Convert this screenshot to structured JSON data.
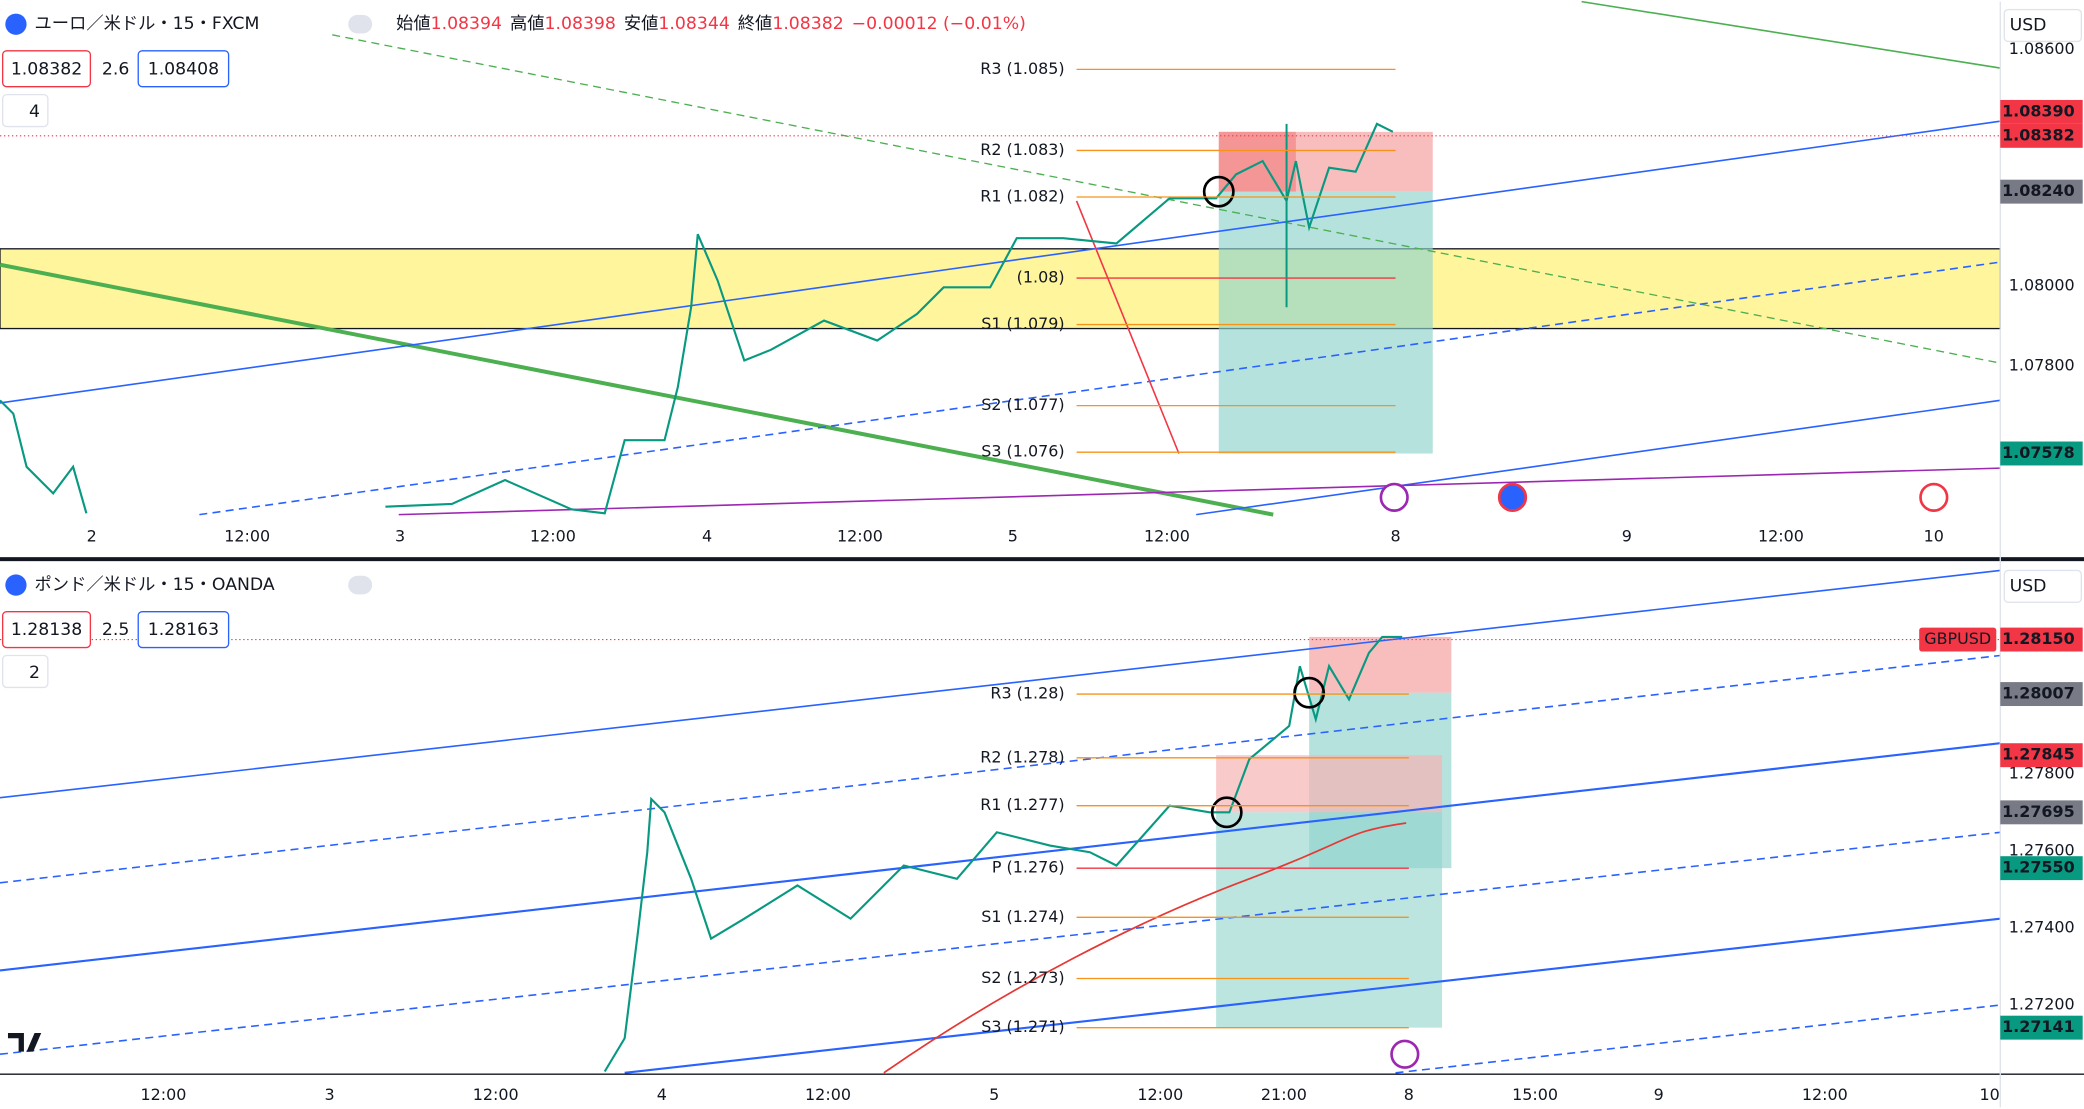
{
  "panels": [
    {
      "symbol": "ユーロ／米ドル・15・FXCM",
      "ohlc": [
        {
          "label": "始値",
          "value": "1.08394"
        },
        {
          "label": "高値",
          "value": "1.08398"
        },
        {
          "label": "安値",
          "value": "1.08344"
        },
        {
          "label": "終値",
          "value": "1.08382"
        }
      ],
      "change": "−0.00012 (−0.01%)",
      "bid": "1.08382",
      "spread": "2.6",
      "ask": "1.08408",
      "indicators": "4",
      "currency": "USD",
      "pivots": [
        "R3 (1.085)",
        "R2 (1.083)",
        "R1 (1.082)",
        "(1.08)",
        "S1 (1.079)",
        "S2 (1.077)",
        "S3 (1.076)"
      ],
      "price_labels": [
        "1.08600",
        "1.08390",
        "1.08382",
        "1.08240",
        "1.08000",
        "1.07800",
        "1.07578"
      ],
      "time_labels": [
        "2",
        "12:00",
        "3",
        "12:00",
        "4",
        "12:00",
        "5",
        "12:00",
        "8",
        "9",
        "12:00",
        "10"
      ]
    },
    {
      "symbol": "ポンド／米ドル・15・OANDA",
      "bid": "1.28138",
      "spread": "2.5",
      "ask": "1.28163",
      "indicators": "2",
      "currency": "USD",
      "tag": "GBPUSD",
      "pivots": [
        "R3 (1.28)",
        "R2 (1.278)",
        "R1 (1.277)",
        "P (1.276)",
        "S1 (1.274)",
        "S2 (1.273)",
        "S3 (1.271)"
      ],
      "price_labels": [
        "1.28150",
        "1.28007",
        "1.27845",
        "1.27800",
        "1.27695",
        "1.27600",
        "1.27550",
        "1.27400",
        "1.27200",
        "1.27141"
      ],
      "time_labels": [
        "12:00",
        "3",
        "12:00",
        "4",
        "12:00",
        "5",
        "12:00",
        "21:00",
        "8",
        "15:00",
        "9",
        "12:00",
        "10"
      ]
    }
  ]
}
